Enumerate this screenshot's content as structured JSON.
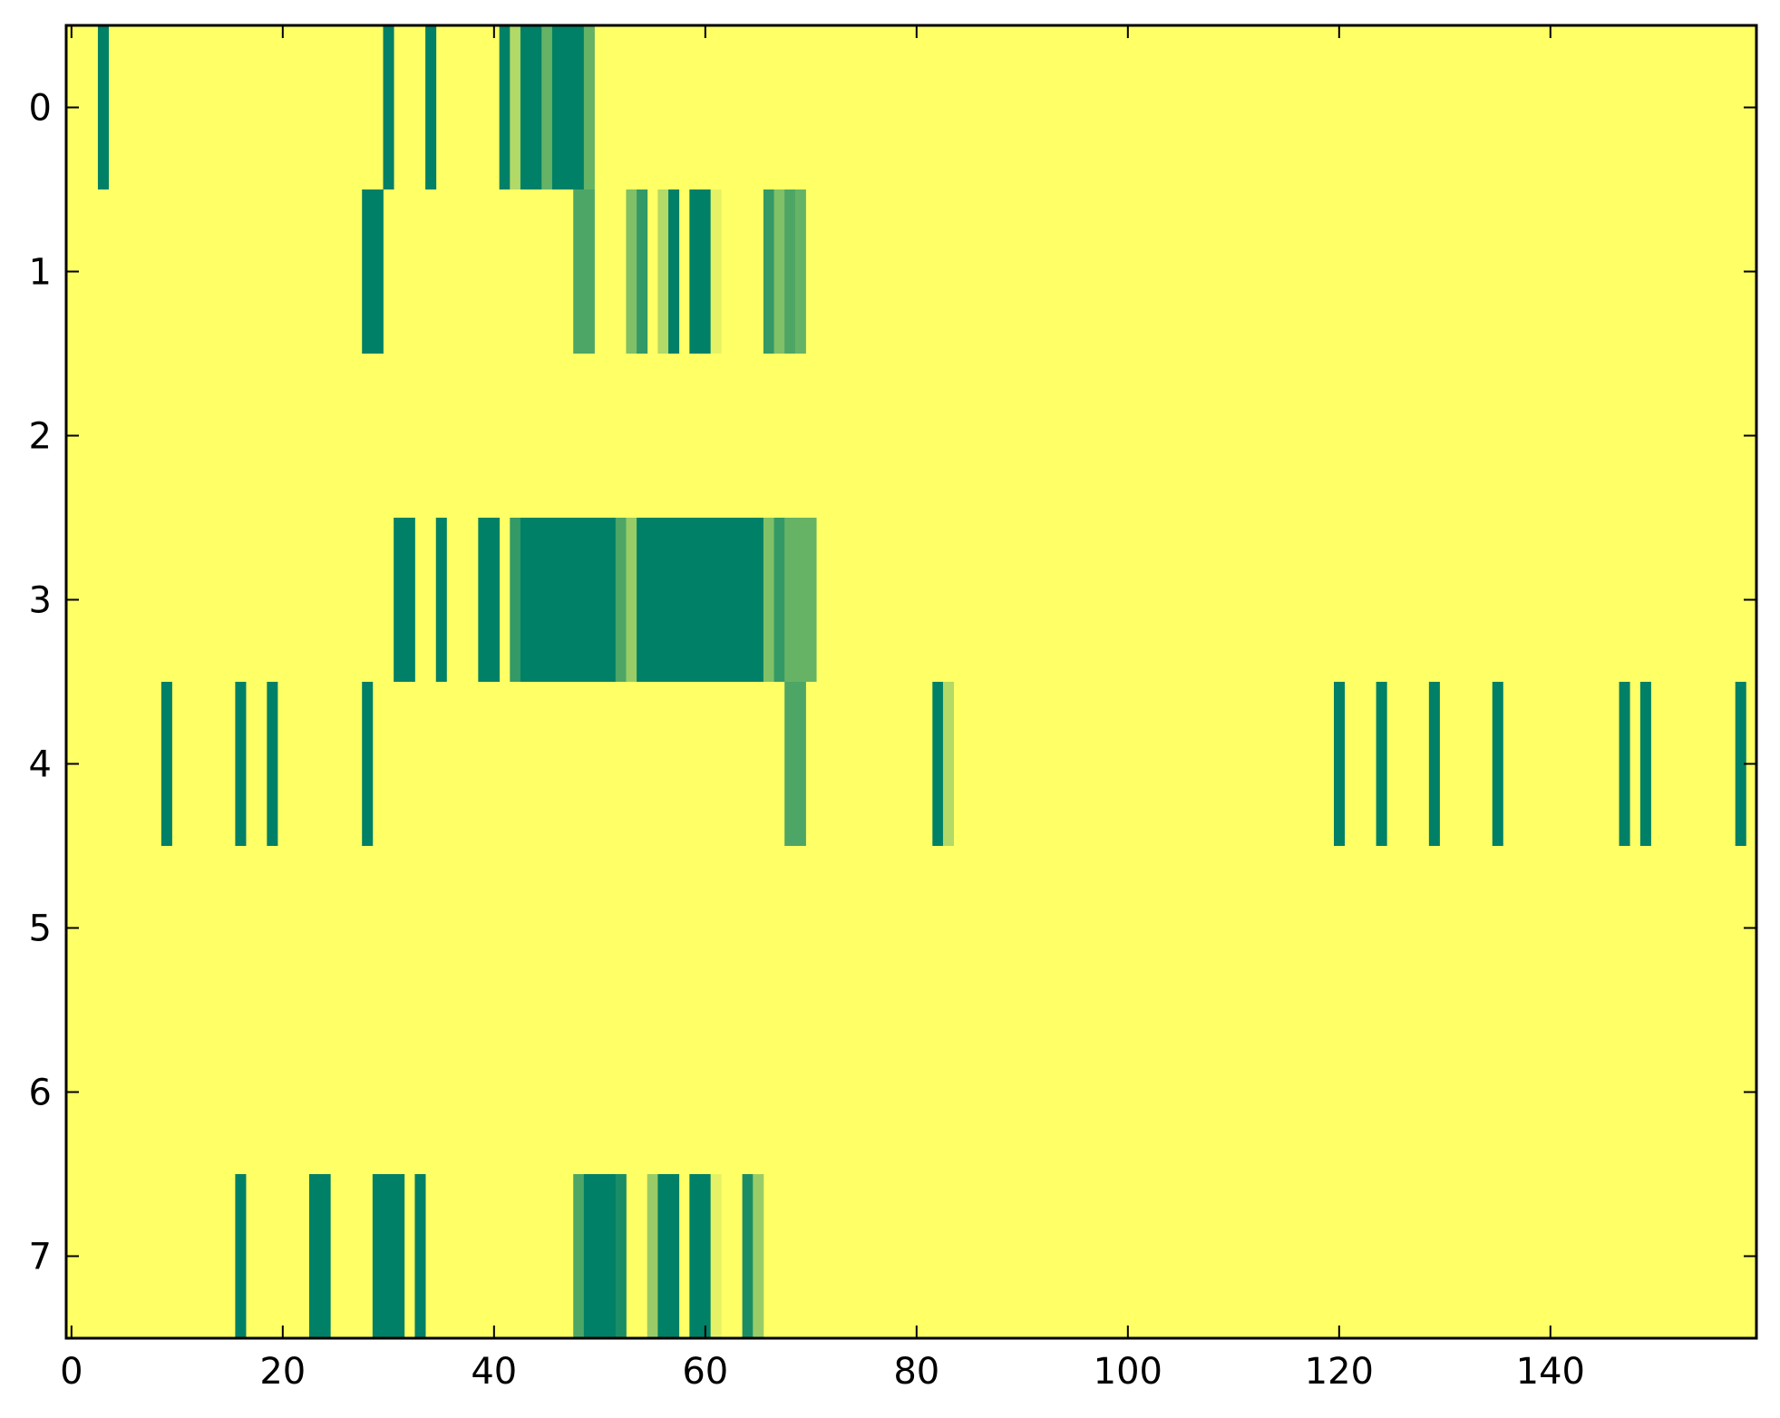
{
  "chart_data": {
    "type": "heatmap",
    "title": "",
    "xlabel": "",
    "ylabel": "",
    "x_range": [
      -0.5,
      159.5
    ],
    "y_range": [
      -0.5,
      7.5
    ],
    "y_inverted": true,
    "grid": false,
    "legend": "none",
    "colormap": "summer_r",
    "colors": {
      "background": "#ffff66",
      "high": "#008066",
      "mid": "#6db866",
      "mid_low": "#9fd066",
      "low": "#d0e866",
      "frame": "#000000"
    },
    "x_ticks": [
      0,
      20,
      40,
      60,
      80,
      100,
      120,
      140
    ],
    "x_tick_labels": [
      "0",
      "20",
      "40",
      "60",
      "80",
      "100",
      "120",
      "140"
    ],
    "y_ticks": [
      0,
      1,
      2,
      3,
      4,
      5,
      6,
      7
    ],
    "y_tick_labels": [
      "0",
      "1",
      "2",
      "3",
      "4",
      "5",
      "6",
      "7"
    ],
    "value_scale": [
      0,
      1
    ],
    "rows": [
      {
        "row": 0,
        "cells": [
          [
            3,
            1
          ],
          [
            30,
            1
          ],
          [
            34,
            1
          ],
          [
            41,
            1
          ],
          [
            42,
            0.3
          ],
          [
            43,
            1
          ],
          [
            44,
            1
          ],
          [
            45,
            0.6
          ],
          [
            46,
            1
          ],
          [
            47,
            1
          ],
          [
            48,
            1
          ],
          [
            49,
            0.6
          ]
        ]
      },
      {
        "row": 1,
        "cells": [
          [
            28,
            1
          ],
          [
            29,
            1
          ],
          [
            48,
            0.7
          ],
          [
            49,
            0.7
          ],
          [
            53,
            0.5
          ],
          [
            54,
            0.8
          ],
          [
            56,
            0.3
          ],
          [
            57,
            1
          ],
          [
            59,
            1
          ],
          [
            60,
            1
          ],
          [
            61,
            0.1
          ],
          [
            66,
            0.8
          ],
          [
            67,
            0.5
          ],
          [
            68,
            0.7
          ],
          [
            69,
            0.6
          ]
        ]
      },
      {
        "row": 3,
        "cells": [
          [
            31,
            1
          ],
          [
            32,
            1
          ],
          [
            35,
            1
          ],
          [
            39,
            1
          ],
          [
            40,
            1
          ],
          [
            42,
            0.8
          ],
          [
            43,
            1
          ],
          [
            44,
            1
          ],
          [
            45,
            1
          ],
          [
            46,
            1
          ],
          [
            47,
            1
          ],
          [
            48,
            1
          ],
          [
            49,
            1
          ],
          [
            50,
            1
          ],
          [
            51,
            1
          ],
          [
            52,
            0.7
          ],
          [
            53,
            0.4
          ],
          [
            54,
            1
          ],
          [
            55,
            1
          ],
          [
            56,
            1
          ],
          [
            57,
            1
          ],
          [
            58,
            1
          ],
          [
            59,
            1
          ],
          [
            60,
            1
          ],
          [
            61,
            1
          ],
          [
            62,
            1
          ],
          [
            63,
            1
          ],
          [
            64,
            1
          ],
          [
            65,
            1
          ],
          [
            66,
            0.5
          ],
          [
            67,
            0.8
          ],
          [
            68,
            0.6
          ],
          [
            69,
            0.6
          ],
          [
            70,
            0.6
          ]
        ]
      },
      {
        "row": 4,
        "cells": [
          [
            9,
            1
          ],
          [
            16,
            1
          ],
          [
            19,
            1
          ],
          [
            28,
            1
          ],
          [
            68,
            0.7
          ],
          [
            69,
            0.7
          ],
          [
            82,
            1
          ],
          [
            83,
            0.3
          ],
          [
            120,
            1
          ],
          [
            124,
            1
          ],
          [
            129,
            1
          ],
          [
            135,
            1
          ],
          [
            147,
            1
          ],
          [
            149,
            1
          ],
          [
            158,
            1
          ]
        ]
      },
      {
        "row": 7,
        "cells": [
          [
            16,
            1
          ],
          [
            23,
            1
          ],
          [
            24,
            1
          ],
          [
            29,
            1
          ],
          [
            30,
            1
          ],
          [
            31,
            1
          ],
          [
            33,
            1
          ],
          [
            48,
            0.7
          ],
          [
            49,
            1
          ],
          [
            50,
            1
          ],
          [
            51,
            1
          ],
          [
            52,
            0.9
          ],
          [
            55,
            0.4
          ],
          [
            56,
            1
          ],
          [
            57,
            1
          ],
          [
            59,
            1
          ],
          [
            60,
            1
          ],
          [
            61,
            0.1
          ],
          [
            64,
            0.9
          ],
          [
            65,
            0.4
          ]
        ]
      }
    ]
  }
}
